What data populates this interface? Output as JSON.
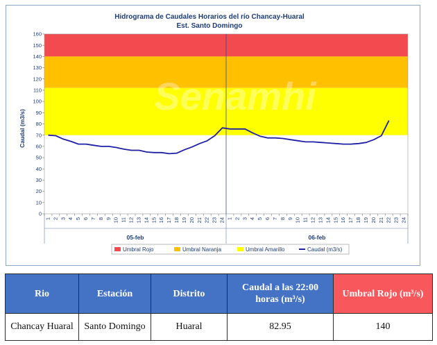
{
  "chart_data": {
    "type": "line",
    "title": "Hidrograma de Caudales Horarios del río Chancay-Huaral",
    "subtitle": "Est. Santo Domingo",
    "ylabel": "Caudal  (m3/s)",
    "ylim": [
      0,
      160
    ],
    "yticks": [
      0,
      10,
      20,
      30,
      40,
      50,
      60,
      70,
      80,
      90,
      100,
      110,
      120,
      130,
      140,
      150,
      160
    ],
    "x_ticks": [
      "1",
      "2",
      "3",
      "4",
      "5",
      "6",
      "7",
      "8",
      "9",
      "10",
      "11",
      "12",
      "13",
      "14",
      "15",
      "16",
      "17",
      "18",
      "19",
      "20",
      "21",
      "22",
      "23",
      "24",
      "1",
      "2",
      "3",
      "4",
      "5",
      "6",
      "7",
      "8",
      "9",
      "10",
      "11",
      "12",
      "13",
      "14",
      "15",
      "16",
      "17",
      "18",
      "19",
      "20",
      "21",
      "22",
      "23",
      "24"
    ],
    "days": [
      "05-feb",
      "06-feb"
    ],
    "watermark": "Senamhi",
    "thresholds": [
      {
        "name": "Umbral Rojo",
        "from": 140,
        "to": 160,
        "color": "#f24a4e"
      },
      {
        "name": "Umbral Naranja",
        "from": 112,
        "to": 140,
        "color": "#ffc000"
      },
      {
        "name": "Umbral Amarillo",
        "from": 70,
        "to": 112,
        "color": "#ffff00"
      }
    ],
    "series": [
      {
        "name": "Caudal (m3/s)",
        "color": "#1f1fa6",
        "x": [
          1,
          2,
          3,
          4,
          5,
          6,
          7,
          8,
          9,
          10,
          11,
          12,
          13,
          14,
          15,
          16,
          17,
          18,
          19,
          20,
          21,
          22,
          23,
          24,
          25,
          26,
          27,
          28,
          29,
          30,
          31,
          32,
          33,
          34,
          35,
          36,
          37,
          38,
          39,
          40,
          41,
          42,
          43,
          44,
          45,
          46
        ],
        "values": [
          70,
          69.5,
          66.5,
          64.5,
          62,
          62,
          61,
          60,
          60,
          59,
          57.5,
          56.5,
          56.5,
          55,
          54.5,
          54.5,
          53.5,
          54,
          57,
          59.5,
          62.5,
          65,
          69.5,
          76.5,
          75.5,
          75.5,
          75.5,
          72,
          69,
          67.5,
          67.5,
          67,
          66,
          65,
          64,
          64,
          63.5,
          63,
          62.5,
          62,
          62,
          62.5,
          63.5,
          66,
          69.5,
          82.95
        ]
      }
    ],
    "legend": [
      "Umbral Rojo",
      "Umbral Naranja",
      "Umbral Amarillo",
      "Caudal (m3/s)"
    ],
    "legend_position": "bottom"
  },
  "table": {
    "headers": {
      "rio": "Rio",
      "estacion": "Estación",
      "distrito": "Distrito",
      "caudal": "Caudal a las 22:00 horas (m³/s)",
      "umbral": "Umbral Rojo (m³/s)"
    },
    "row": {
      "rio": "Chancay Huaral",
      "estacion": "Santo Domingo",
      "distrito": "Huaral",
      "caudal": "82.95",
      "umbral": "140"
    }
  }
}
